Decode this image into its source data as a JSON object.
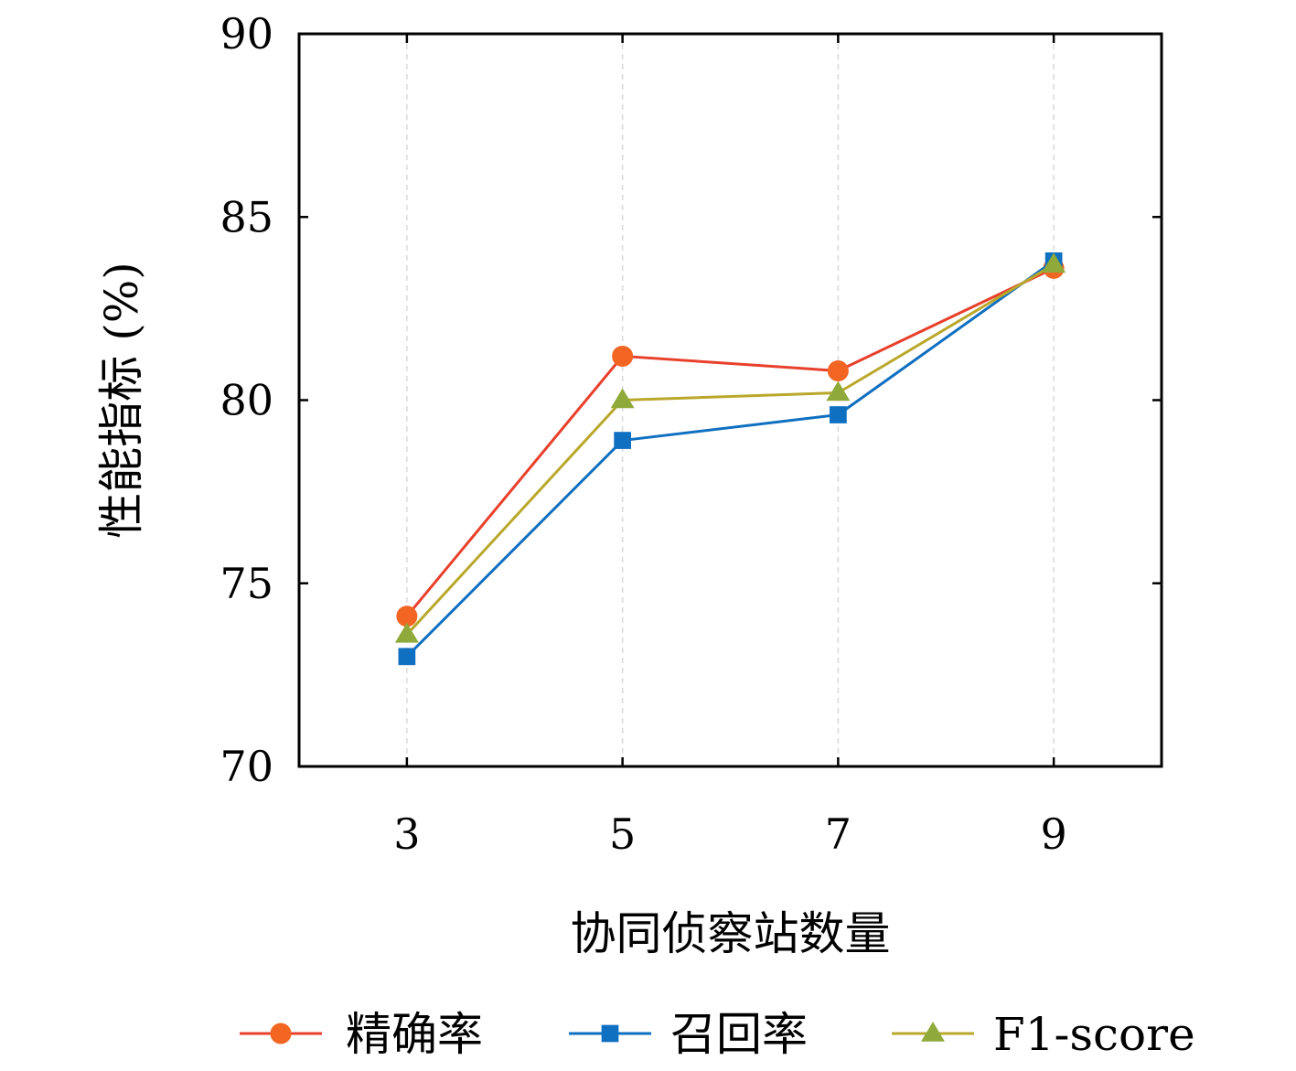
{
  "chart_data": {
    "type": "line",
    "title": "",
    "xlabel": "协同侦察站数量",
    "ylabel": "性能指标 (%)",
    "categories": [
      "3",
      "5",
      "7",
      "9"
    ],
    "x": [
      3,
      5,
      7,
      9
    ],
    "xlim": [
      2,
      10
    ],
    "ylim": [
      70,
      90
    ],
    "yticks": [
      70,
      75,
      80,
      85,
      90
    ],
    "grid": "vertical dashed",
    "legend_position": "bottom",
    "series": [
      {
        "name": "精确率",
        "values": [
          74.1,
          81.2,
          80.8,
          83.6
        ],
        "color": "#e8402b",
        "marker": "circle",
        "marker_color": "#f26522"
      },
      {
        "name": "召回率",
        "values": [
          73.0,
          78.9,
          79.6,
          83.8
        ],
        "color": "#0f6fc0",
        "marker": "square",
        "marker_color": "#0f6fc0"
      },
      {
        "name": "F1-score",
        "values": [
          73.6,
          80.0,
          80.2,
          83.7
        ],
        "color": "#b9a82b",
        "marker": "triangle",
        "marker_color": "#8faa3a"
      }
    ]
  }
}
